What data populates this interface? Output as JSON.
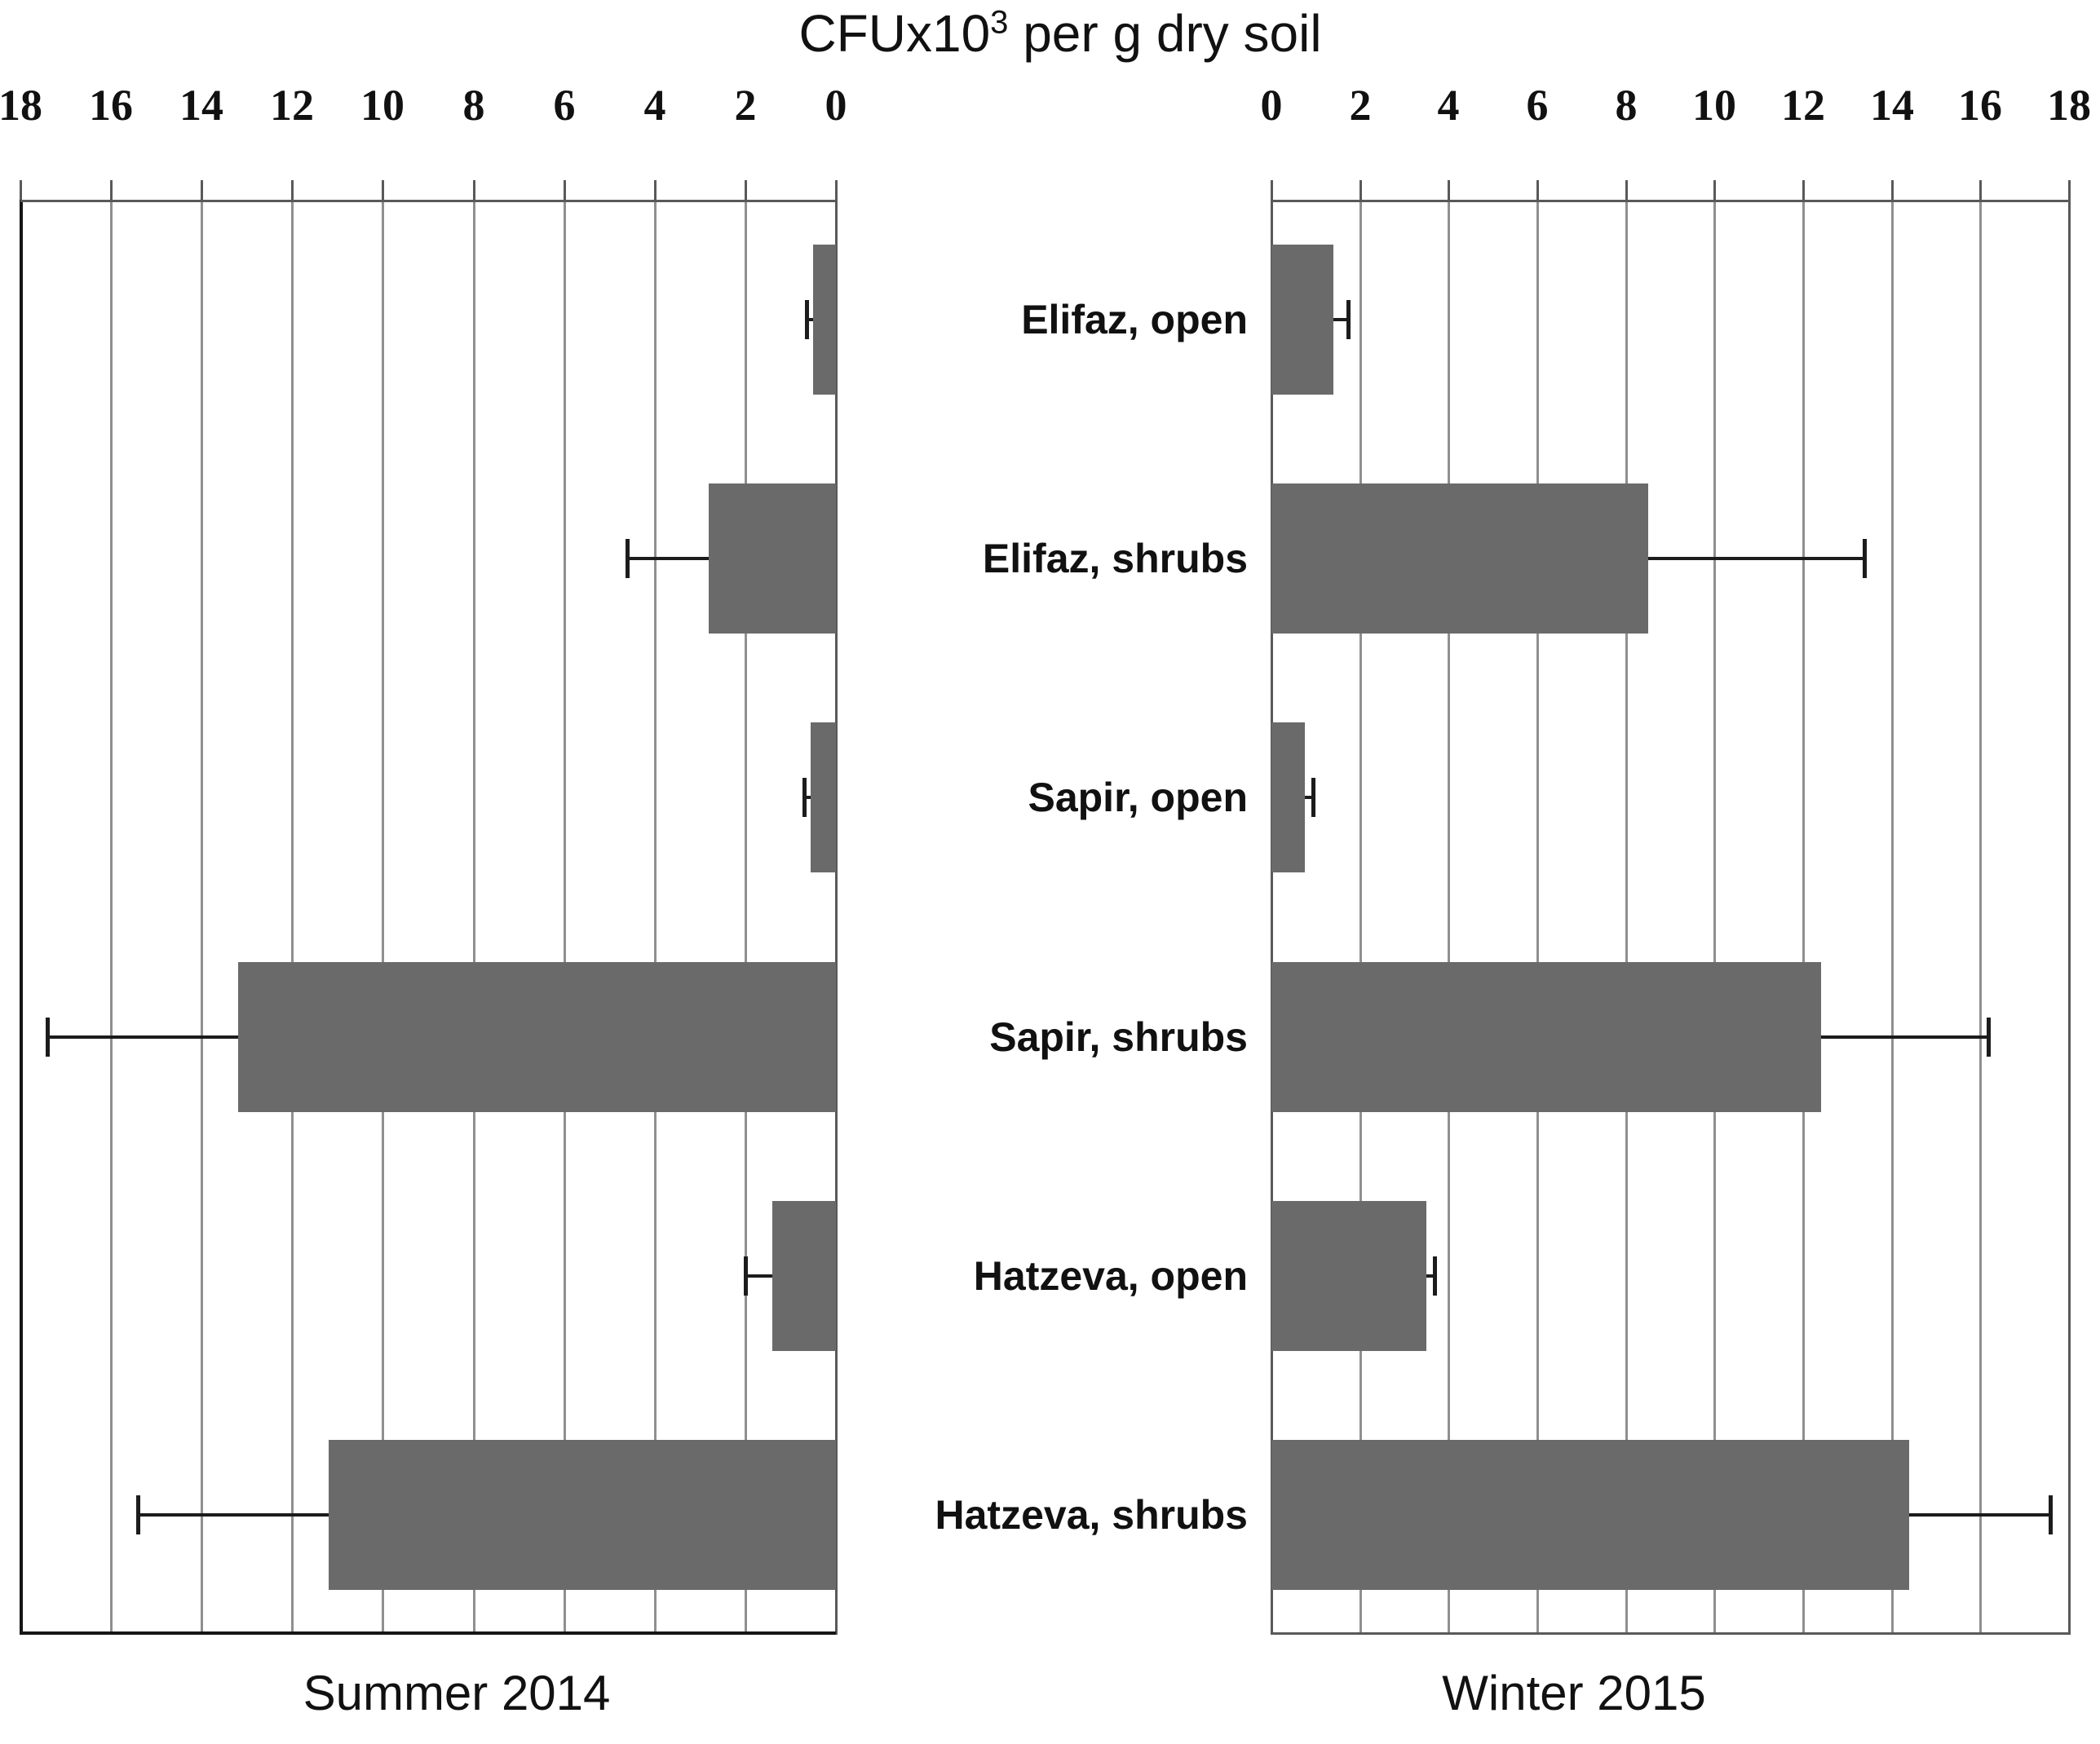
{
  "title": {
    "prefix": "CFUx10",
    "sup": "3",
    "suffix": " per g dry soil"
  },
  "captions": {
    "left": "Summer 2014",
    "right": "Winter 2015"
  },
  "chart_data": {
    "type": "bar",
    "orientation": "horizontal",
    "title": "CFUx10^3 per g dry soil",
    "subtitle": "",
    "categories": [
      "Elifaz, open",
      "Elifaz, shrubs",
      "Sapir, open",
      "Sapir, shrubs",
      "Hatzeva, open",
      "Hatzeva, shrubs"
    ],
    "series": [
      {
        "name": "Summer 2014",
        "panel": "left",
        "axis_reversed": true,
        "values": [
          0.5,
          2.8,
          0.55,
          13.2,
          1.4,
          11.2
        ],
        "errors": [
          0.15,
          1.8,
          0.15,
          4.2,
          0.6,
          4.2
        ]
      },
      {
        "name": "Winter 2015",
        "panel": "right",
        "axis_reversed": false,
        "values": [
          1.4,
          8.5,
          0.75,
          12.4,
          3.5,
          14.4
        ],
        "errors": [
          0.35,
          4.9,
          0.2,
          3.8,
          0.2,
          3.2
        ]
      }
    ],
    "xlabel": "CFUx10^3 per g dry soil",
    "ylabel": "",
    "xlim": [
      0,
      18
    ],
    "tick_step": 2,
    "ticks": [
      0,
      2,
      4,
      6,
      8,
      10,
      12,
      14,
      16,
      18
    ],
    "grid": true,
    "legend_position": "none",
    "error_bars": true,
    "colors": {
      "bar": "#6a6a6a",
      "grid": "#8f8f8f",
      "border": "#595959",
      "axis": "#161616",
      "error": "#1c1c1c",
      "text": "#111111"
    }
  }
}
